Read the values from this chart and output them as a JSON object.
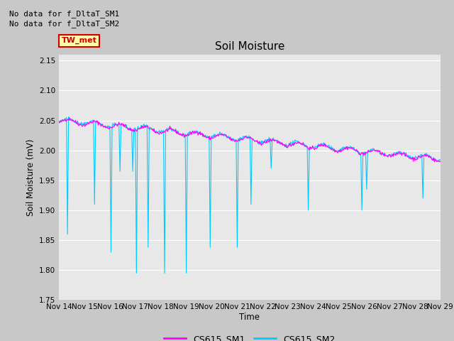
{
  "title": "Soil Moisture",
  "ylabel": "Soil Moisture (mV)",
  "xlabel": "Time",
  "text_no_data_1": "No data for f_DltaT_SM1",
  "text_no_data_2": "No data for f_DltaT_SM2",
  "tw_met_label": "TW_met",
  "ylim": [
    1.75,
    2.16
  ],
  "yticks": [
    1.75,
    1.8,
    1.85,
    1.9,
    1.95,
    2.0,
    2.05,
    2.1,
    2.15
  ],
  "xtick_labels": [
    "Nov 14",
    "Nov 15",
    "Nov 16",
    "Nov 17",
    "Nov 18",
    "Nov 19",
    "Nov 20",
    "Nov 21",
    "Nov 22",
    "Nov 23",
    "Nov 24",
    "Nov 25",
    "Nov 26",
    "Nov 27",
    "Nov 28",
    "Nov 29"
  ],
  "legend_labels": [
    "CS615_SM1",
    "CS615_SM2"
  ],
  "legend_colors": [
    "#ff00ff",
    "#00ccff"
  ],
  "background_color": "#c8c8c8",
  "plot_bg_color": "#e8e8e8",
  "grid_color": "#ffffff",
  "tw_met_box_color": "#ffffaa",
  "tw_met_border_color": "#cc0000",
  "tw_met_text_color": "#cc0000"
}
